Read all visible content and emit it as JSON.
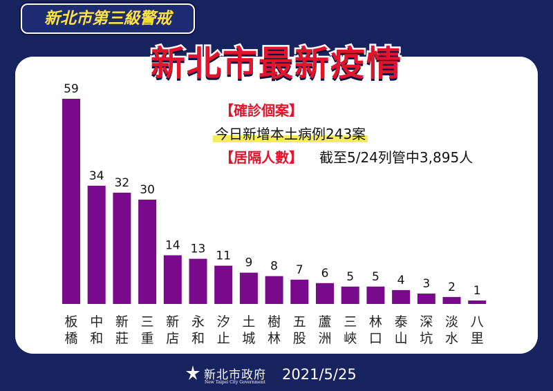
{
  "badge": "新北市第三級警戒",
  "title": "新北市最新疫情",
  "info": {
    "case_header": "【確診個案】",
    "case_text": "今日新增本土病例243案",
    "quarantine_header": "【居隔人數】",
    "quarantine_text": "截至5/24列管中3,895人"
  },
  "footer": {
    "logo_cn": "新北市政府",
    "logo_en": "New Taipei City Government",
    "date": "2021/5/25"
  },
  "colors": {
    "bar": "#7a0a8c",
    "title": "#e1142c",
    "background": "#16235e",
    "highlight": "#f6ec5a"
  },
  "chart_data": {
    "type": "bar",
    "categories": [
      "板橋",
      "中和",
      "新莊",
      "三重",
      "新店",
      "永和",
      "汐止",
      "土城",
      "樹林",
      "五股",
      "蘆洲",
      "三峽",
      "林口",
      "泰山",
      "深坑",
      "淡水",
      "八里"
    ],
    "values": [
      59,
      34,
      32,
      30,
      14,
      13,
      11,
      9,
      8,
      7,
      6,
      5,
      5,
      4,
      3,
      2,
      1
    ],
    "title": "",
    "xlabel": "",
    "ylabel": "",
    "ylim": [
      0,
      59
    ],
    "grid": false,
    "data_labels": true
  }
}
